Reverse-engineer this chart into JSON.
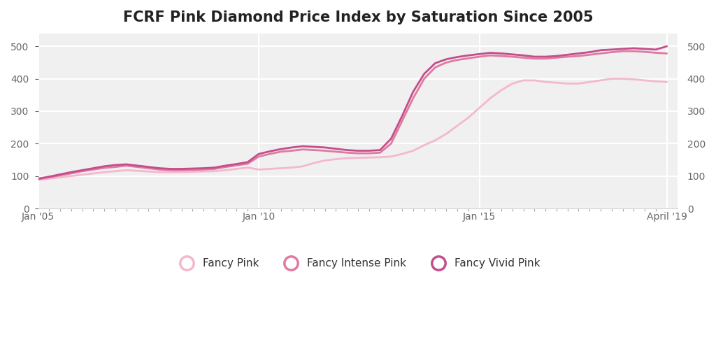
{
  "title": "FCRF Pink Diamond Price Index by Saturation Since 2005",
  "title_fontsize": 15,
  "background_color": "#ffffff",
  "plot_bg_color": "#f0f0f0",
  "xlim_years": [
    2005.0,
    2019.5
  ],
  "ylim": [
    0,
    540
  ],
  "yticks": [
    0,
    100,
    200,
    300,
    400,
    500
  ],
  "xtick_labels": [
    "Jan '05",
    "Jan '10",
    "Jan '15",
    "April '19"
  ],
  "xtick_positions": [
    2005.0,
    2010.0,
    2015.0,
    2019.25
  ],
  "legend_labels": [
    "Fancy Pink",
    "Fancy Intense Pink",
    "Fancy Vivid Pink"
  ],
  "legend_colors": [
    "#f4b8ce",
    "#e07aa0",
    "#c44d8c"
  ],
  "series": {
    "fancy_pink": {
      "color": "#f4b8ce",
      "linewidth": 2.0,
      "x": [
        2005.0,
        2005.25,
        2005.5,
        2005.75,
        2006.0,
        2006.25,
        2006.5,
        2006.75,
        2007.0,
        2007.25,
        2007.5,
        2007.75,
        2008.0,
        2008.25,
        2008.5,
        2008.75,
        2009.0,
        2009.25,
        2009.5,
        2009.75,
        2010.0,
        2010.25,
        2010.5,
        2010.75,
        2011.0,
        2011.25,
        2011.5,
        2011.75,
        2012.0,
        2012.25,
        2012.5,
        2012.75,
        2013.0,
        2013.25,
        2013.5,
        2013.75,
        2014.0,
        2014.25,
        2014.5,
        2014.75,
        2015.0,
        2015.25,
        2015.5,
        2015.75,
        2016.0,
        2016.25,
        2016.5,
        2016.75,
        2017.0,
        2017.25,
        2017.5,
        2017.75,
        2018.0,
        2018.25,
        2018.5,
        2018.75,
        2019.0,
        2019.25
      ],
      "y": [
        88,
        92,
        96,
        100,
        104,
        108,
        112,
        115,
        118,
        116,
        114,
        112,
        112,
        112,
        113,
        114,
        115,
        118,
        122,
        126,
        120,
        122,
        124,
        126,
        130,
        140,
        148,
        152,
        155,
        156,
        157,
        158,
        160,
        168,
        178,
        195,
        210,
        230,
        255,
        280,
        310,
        340,
        365,
        385,
        395,
        395,
        390,
        388,
        385,
        385,
        390,
        395,
        400,
        400,
        398,
        395,
        392,
        390
      ]
    },
    "fancy_intense_pink": {
      "color": "#e07aa0",
      "linewidth": 2.0,
      "x": [
        2005.0,
        2005.25,
        2005.5,
        2005.75,
        2006.0,
        2006.25,
        2006.5,
        2006.75,
        2007.0,
        2007.25,
        2007.5,
        2007.75,
        2008.0,
        2008.25,
        2008.5,
        2008.75,
        2009.0,
        2009.25,
        2009.5,
        2009.75,
        2010.0,
        2010.25,
        2010.5,
        2010.75,
        2011.0,
        2011.25,
        2011.5,
        2011.75,
        2012.0,
        2012.25,
        2012.5,
        2012.75,
        2013.0,
        2013.25,
        2013.5,
        2013.75,
        2014.0,
        2014.25,
        2014.5,
        2014.75,
        2015.0,
        2015.25,
        2015.5,
        2015.75,
        2016.0,
        2016.25,
        2016.5,
        2016.75,
        2017.0,
        2017.25,
        2017.5,
        2017.75,
        2018.0,
        2018.25,
        2018.5,
        2018.75,
        2019.0,
        2019.25
      ],
      "y": [
        90,
        96,
        102,
        108,
        115,
        120,
        125,
        128,
        132,
        128,
        124,
        120,
        118,
        118,
        119,
        120,
        122,
        128,
        133,
        138,
        160,
        168,
        175,
        178,
        182,
        180,
        178,
        175,
        172,
        170,
        170,
        172,
        200,
        270,
        340,
        400,
        435,
        450,
        458,
        463,
        468,
        472,
        470,
        468,
        465,
        462,
        462,
        465,
        468,
        470,
        474,
        478,
        482,
        485,
        485,
        483,
        480,
        478
      ]
    },
    "fancy_vivid_pink": {
      "color": "#c44d8c",
      "linewidth": 2.0,
      "x": [
        2005.0,
        2005.25,
        2005.5,
        2005.75,
        2006.0,
        2006.25,
        2006.5,
        2006.75,
        2007.0,
        2007.25,
        2007.5,
        2007.75,
        2008.0,
        2008.25,
        2008.5,
        2008.75,
        2009.0,
        2009.25,
        2009.5,
        2009.75,
        2010.0,
        2010.25,
        2010.5,
        2010.75,
        2011.0,
        2011.25,
        2011.5,
        2011.75,
        2012.0,
        2012.25,
        2012.5,
        2012.75,
        2013.0,
        2013.25,
        2013.5,
        2013.75,
        2014.0,
        2014.25,
        2014.5,
        2014.75,
        2015.0,
        2015.25,
        2015.5,
        2015.75,
        2016.0,
        2016.25,
        2016.5,
        2016.75,
        2017.0,
        2017.25,
        2017.5,
        2017.75,
        2018.0,
        2018.25,
        2018.5,
        2018.75,
        2019.0,
        2019.25
      ],
      "y": [
        92,
        98,
        105,
        112,
        118,
        124,
        130,
        134,
        136,
        132,
        128,
        124,
        122,
        122,
        123,
        124,
        126,
        132,
        137,
        143,
        168,
        176,
        183,
        188,
        192,
        190,
        188,
        184,
        180,
        178,
        178,
        180,
        215,
        285,
        360,
        415,
        448,
        460,
        467,
        472,
        476,
        480,
        478,
        475,
        472,
        468,
        468,
        470,
        474,
        478,
        482,
        488,
        490,
        492,
        494,
        492,
        490,
        500
      ]
    }
  }
}
